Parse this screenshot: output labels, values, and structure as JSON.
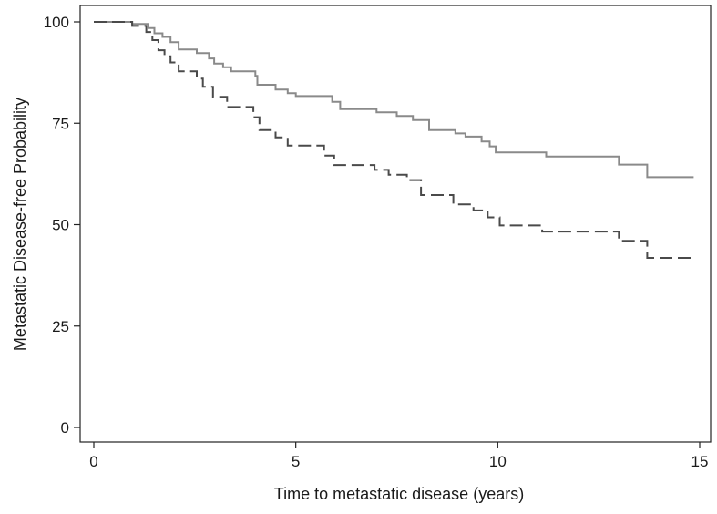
{
  "chart_data": {
    "type": "line",
    "title": "",
    "xlabel": "Time to metastatic disease (years)",
    "ylabel": "Metastatic Disease-free Probability",
    "xlim": [
      0,
      15
    ],
    "ylim": [
      0,
      100
    ],
    "x_ticks": [
      0,
      5,
      10,
      15
    ],
    "x_tick_labels": [
      "0",
      "5",
      "10",
      "15"
    ],
    "y_ticks": [
      0,
      25,
      50,
      75,
      100
    ],
    "y_tick_labels": [
      "0",
      "25",
      "50",
      "75",
      "100"
    ],
    "grid": false,
    "legend": "none",
    "step": true,
    "series": [
      {
        "style": "solid",
        "color": "#8a8a8a",
        "points": [
          [
            0,
            100
          ],
          [
            0.95,
            100
          ],
          [
            0.95,
            99.5
          ],
          [
            1.35,
            99.5
          ],
          [
            1.35,
            98.5
          ],
          [
            1.5,
            98.5
          ],
          [
            1.5,
            97.2
          ],
          [
            1.7,
            97.2
          ],
          [
            1.7,
            96.3
          ],
          [
            1.9,
            96.3
          ],
          [
            1.9,
            95.0
          ],
          [
            2.1,
            95.0
          ],
          [
            2.1,
            93.2
          ],
          [
            2.55,
            93.2
          ],
          [
            2.55,
            92.3
          ],
          [
            2.85,
            92.3
          ],
          [
            2.85,
            91.0
          ],
          [
            2.98,
            91.0
          ],
          [
            2.98,
            89.7
          ],
          [
            3.2,
            89.7
          ],
          [
            3.2,
            88.8
          ],
          [
            3.4,
            88.8
          ],
          [
            3.4,
            87.8
          ],
          [
            4.0,
            87.8
          ],
          [
            4.0,
            86.7
          ],
          [
            4.05,
            86.7
          ],
          [
            4.05,
            84.5
          ],
          [
            4.5,
            84.5
          ],
          [
            4.5,
            83.3
          ],
          [
            4.8,
            83.3
          ],
          [
            4.8,
            82.4
          ],
          [
            5.0,
            82.4
          ],
          [
            5.0,
            81.7
          ],
          [
            5.9,
            81.7
          ],
          [
            5.9,
            80.3
          ],
          [
            6.1,
            80.3
          ],
          [
            6.1,
            78.5
          ],
          [
            7.0,
            78.5
          ],
          [
            7.0,
            77.7
          ],
          [
            7.5,
            77.7
          ],
          [
            7.5,
            76.8
          ],
          [
            7.9,
            76.8
          ],
          [
            7.9,
            75.8
          ],
          [
            8.3,
            75.8
          ],
          [
            8.3,
            73.3
          ],
          [
            8.95,
            73.3
          ],
          [
            8.95,
            72.5
          ],
          [
            9.2,
            72.5
          ],
          [
            9.2,
            71.7
          ],
          [
            9.6,
            71.7
          ],
          [
            9.6,
            70.5
          ],
          [
            9.8,
            70.5
          ],
          [
            9.8,
            69.3
          ],
          [
            9.95,
            69.3
          ],
          [
            9.95,
            67.8
          ],
          [
            11.2,
            67.8
          ],
          [
            11.2,
            66.8
          ],
          [
            13.0,
            66.8
          ],
          [
            13.0,
            64.8
          ],
          [
            13.7,
            64.8
          ],
          [
            13.7,
            61.7
          ],
          [
            14.85,
            61.7
          ]
        ]
      },
      {
        "style": "dashed",
        "color": "#4a4a4a",
        "points": [
          [
            0,
            100
          ],
          [
            0.95,
            100
          ],
          [
            0.95,
            99
          ],
          [
            1.3,
            99
          ],
          [
            1.3,
            97.5
          ],
          [
            1.45,
            97.5
          ],
          [
            1.45,
            95.5
          ],
          [
            1.6,
            95.5
          ],
          [
            1.6,
            93
          ],
          [
            1.75,
            93
          ],
          [
            1.75,
            91.5
          ],
          [
            1.9,
            91.5
          ],
          [
            1.9,
            90
          ],
          [
            2.1,
            90
          ],
          [
            2.1,
            87.8
          ],
          [
            2.55,
            87.8
          ],
          [
            2.55,
            86
          ],
          [
            2.7,
            86
          ],
          [
            2.7,
            84
          ],
          [
            2.95,
            84
          ],
          [
            2.95,
            81.5
          ],
          [
            3.3,
            81.5
          ],
          [
            3.3,
            79
          ],
          [
            3.95,
            79
          ],
          [
            3.95,
            76.5
          ],
          [
            4.1,
            76.5
          ],
          [
            4.1,
            73.3
          ],
          [
            4.5,
            73.3
          ],
          [
            4.5,
            71.5
          ],
          [
            4.8,
            71.5
          ],
          [
            4.8,
            69.5
          ],
          [
            5.7,
            69.5
          ],
          [
            5.7,
            67
          ],
          [
            5.95,
            67
          ],
          [
            5.95,
            64.7
          ],
          [
            6.95,
            64.7
          ],
          [
            6.95,
            63.5
          ],
          [
            7.3,
            63.5
          ],
          [
            7.3,
            62.3
          ],
          [
            7.75,
            62.3
          ],
          [
            7.75,
            61
          ],
          [
            8.1,
            61
          ],
          [
            8.1,
            57.3
          ],
          [
            8.9,
            57.3
          ],
          [
            8.9,
            55
          ],
          [
            9.4,
            55
          ],
          [
            9.4,
            53.5
          ],
          [
            9.75,
            53.5
          ],
          [
            9.75,
            51.8
          ],
          [
            10.05,
            51.8
          ],
          [
            10.05,
            49.8
          ],
          [
            11.1,
            49.8
          ],
          [
            11.1,
            48.3
          ],
          [
            13.0,
            48.3
          ],
          [
            13.0,
            46
          ],
          [
            13.7,
            46
          ],
          [
            13.7,
            41.8
          ],
          [
            14.85,
            41.8
          ]
        ]
      }
    ]
  }
}
